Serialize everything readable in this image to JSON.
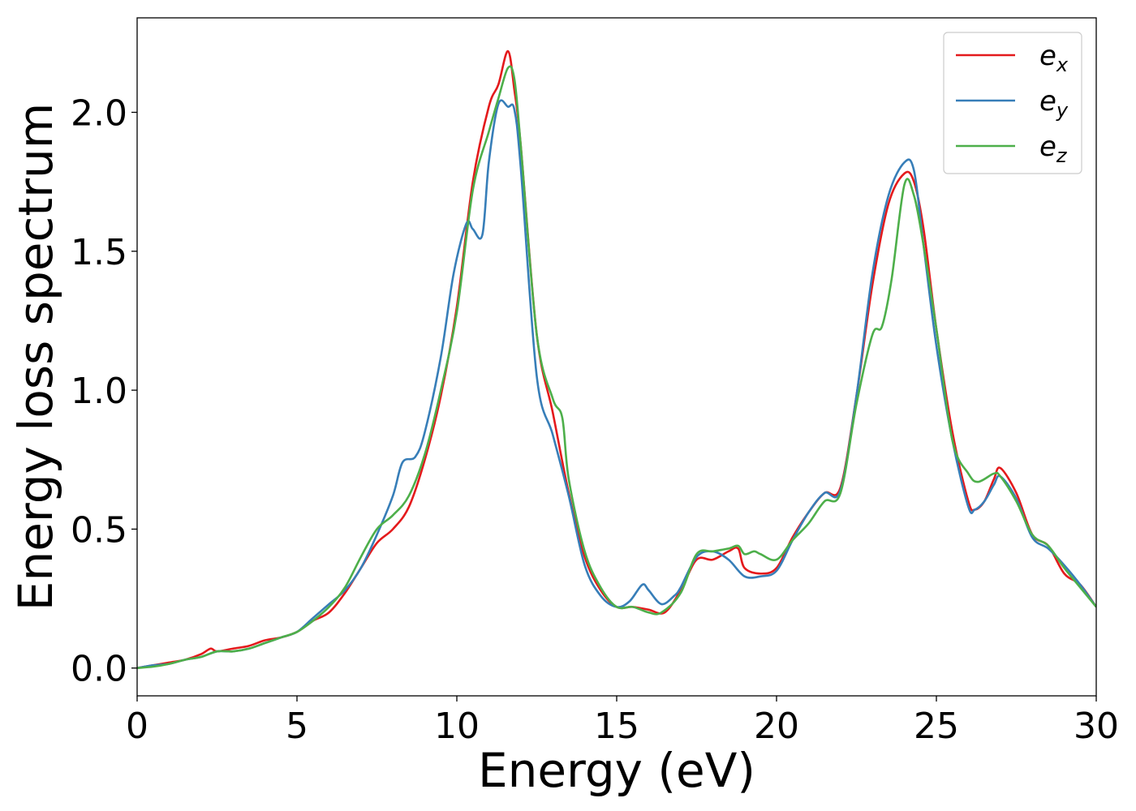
{
  "chart_data": {
    "type": "line",
    "title": "",
    "xlabel": "Energy (eV)",
    "ylabel": "Energy loss spectrum",
    "xlim": [
      0,
      30
    ],
    "ylim": [
      -0.1,
      2.34
    ],
    "xticks": [
      0,
      5,
      10,
      15,
      20,
      25,
      30
    ],
    "yticks": [
      0.0,
      0.5,
      1.0,
      1.5,
      2.0
    ],
    "xtick_labels": [
      "0",
      "5",
      "10",
      "15",
      "20",
      "25",
      "30"
    ],
    "ytick_labels": [
      "0.0",
      "0.5",
      "1.0",
      "1.5",
      "2.0"
    ],
    "grid": false,
    "legend_position": "top-right",
    "series": [
      {
        "name": "e",
        "name_sub": "x",
        "color": "#e41a1c",
        "x": [
          0,
          0.5,
          1,
          1.5,
          2,
          2.3,
          2.5,
          3,
          3.5,
          4,
          4.5,
          5,
          5.5,
          6,
          6.5,
          7,
          7.5,
          8,
          8.5,
          9,
          9.5,
          10,
          10.5,
          11,
          11.3,
          11.6,
          11.8,
          12,
          12.5,
          13,
          13.5,
          14,
          14.5,
          15,
          15.5,
          16,
          16.5,
          17,
          17.5,
          18,
          18.5,
          18.8,
          19,
          19.5,
          20,
          20.5,
          21,
          21.5,
          22,
          22.5,
          23,
          23.5,
          24,
          24.3,
          24.6,
          25,
          25.5,
          26,
          26.2,
          26.5,
          26.8,
          27,
          27.5,
          28,
          28.5,
          29,
          29.5,
          30
        ],
        "y": [
          0,
          0.01,
          0.02,
          0.03,
          0.05,
          0.07,
          0.06,
          0.07,
          0.08,
          0.1,
          0.11,
          0.13,
          0.17,
          0.2,
          0.27,
          0.36,
          0.45,
          0.5,
          0.58,
          0.75,
          0.98,
          1.3,
          1.75,
          2.02,
          2.1,
          2.22,
          2.08,
          1.88,
          1.2,
          0.92,
          0.63,
          0.4,
          0.28,
          0.22,
          0.22,
          0.21,
          0.2,
          0.28,
          0.39,
          0.39,
          0.42,
          0.43,
          0.36,
          0.34,
          0.36,
          0.47,
          0.56,
          0.63,
          0.65,
          0.98,
          1.38,
          1.67,
          1.78,
          1.75,
          1.58,
          1.22,
          0.85,
          0.6,
          0.57,
          0.6,
          0.68,
          0.72,
          0.63,
          0.48,
          0.44,
          0.34,
          0.3,
          0.22
        ]
      },
      {
        "name": "e",
        "name_sub": "y",
        "color": "#377eb8",
        "x": [
          0,
          0.5,
          1,
          1.5,
          2,
          2.5,
          3,
          3.5,
          4,
          4.5,
          5,
          5.5,
          6,
          6.5,
          7,
          7.5,
          8,
          8.3,
          8.7,
          9,
          9.5,
          9.9,
          10.3,
          10.5,
          10.8,
          11,
          11.3,
          11.6,
          11.8,
          12,
          12.5,
          13,
          13.5,
          14,
          14.5,
          15,
          15.4,
          15.8,
          16,
          16.4,
          16.8,
          17,
          17.5,
          18,
          18.5,
          19,
          19.5,
          20,
          20.5,
          21,
          21.5,
          22,
          22.5,
          23,
          23.5,
          24,
          24.3,
          24.6,
          25,
          25.5,
          26,
          26.2,
          26.5,
          26.8,
          27,
          27.5,
          28,
          28.5,
          29,
          29.5,
          30
        ],
        "y": [
          0,
          0.01,
          0.015,
          0.03,
          0.04,
          0.06,
          0.06,
          0.07,
          0.09,
          0.11,
          0.13,
          0.18,
          0.23,
          0.28,
          0.36,
          0.48,
          0.62,
          0.74,
          0.76,
          0.85,
          1.12,
          1.42,
          1.6,
          1.58,
          1.56,
          1.82,
          2.03,
          2.02,
          2.01,
          1.8,
          1.05,
          0.84,
          0.62,
          0.37,
          0.26,
          0.22,
          0.24,
          0.3,
          0.28,
          0.23,
          0.26,
          0.29,
          0.4,
          0.42,
          0.39,
          0.33,
          0.33,
          0.35,
          0.46,
          0.56,
          0.63,
          0.64,
          0.98,
          1.42,
          1.7,
          1.82,
          1.79,
          1.52,
          1.16,
          0.82,
          0.58,
          0.57,
          0.6,
          0.66,
          0.69,
          0.61,
          0.47,
          0.43,
          0.37,
          0.3,
          0.22
        ]
      },
      {
        "name": "e",
        "name_sub": "z",
        "color": "#4daf4a",
        "x": [
          0,
          0.5,
          1,
          1.5,
          2,
          2.5,
          3,
          3.5,
          4,
          4.5,
          5,
          5.5,
          6,
          6.5,
          7,
          7.5,
          8,
          8.5,
          9,
          9.5,
          10,
          10.5,
          11,
          11.3,
          11.6,
          11.8,
          12,
          12.5,
          13,
          13.3,
          13.5,
          14,
          14.5,
          15,
          15.5,
          16,
          16.4,
          17,
          17.5,
          18,
          18.5,
          18.8,
          19,
          19.3,
          19.5,
          20,
          20.5,
          21,
          21.5,
          22,
          22.5,
          23,
          23.3,
          23.6,
          24,
          24.3,
          24.6,
          25,
          25.5,
          26,
          26.3,
          26.8,
          27,
          27.5,
          28,
          28.5,
          29,
          29.5,
          30
        ],
        "y": [
          0,
          0.005,
          0.015,
          0.03,
          0.04,
          0.06,
          0.06,
          0.07,
          0.09,
          0.11,
          0.13,
          0.17,
          0.22,
          0.29,
          0.4,
          0.5,
          0.55,
          0.62,
          0.77,
          1.0,
          1.28,
          1.72,
          1.93,
          2.05,
          2.16,
          2.12,
          1.88,
          1.2,
          0.97,
          0.9,
          0.68,
          0.42,
          0.29,
          0.22,
          0.22,
          0.2,
          0.2,
          0.27,
          0.41,
          0.42,
          0.43,
          0.44,
          0.41,
          0.42,
          0.41,
          0.39,
          0.46,
          0.52,
          0.6,
          0.63,
          0.95,
          1.2,
          1.23,
          1.4,
          1.74,
          1.7,
          1.52,
          1.22,
          0.82,
          0.7,
          0.67,
          0.7,
          0.69,
          0.6,
          0.48,
          0.44,
          0.36,
          0.29,
          0.22
        ]
      }
    ]
  }
}
